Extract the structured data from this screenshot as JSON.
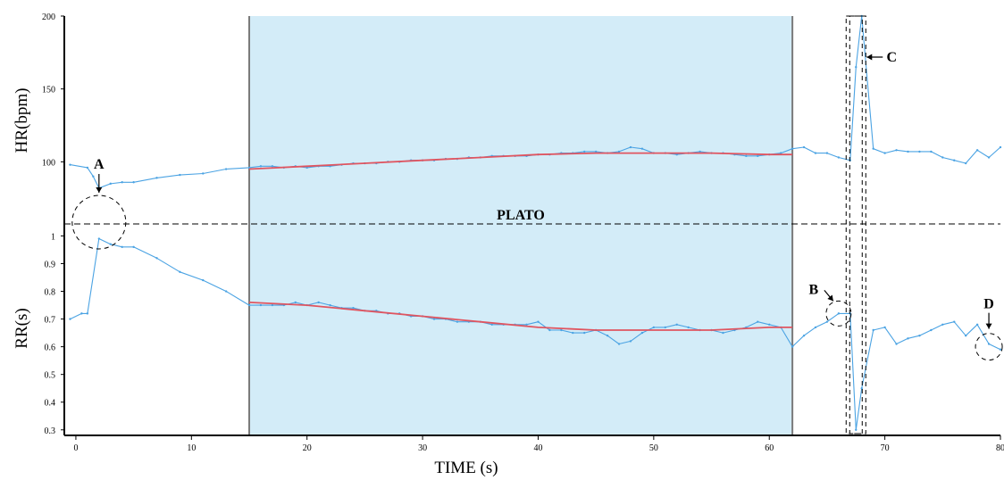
{
  "chart_data": {
    "type": "line",
    "xlabel": "TIME (s)",
    "x_ticks": [
      0,
      10,
      20,
      30,
      40,
      50,
      60,
      70,
      80
    ],
    "xlim": [
      -1,
      80
    ],
    "plateau_region": [
      15,
      62
    ],
    "threshold_label": "PLATO",
    "panels": [
      {
        "ylabel": "HR(bpm)",
        "y_ticks": [
          100,
          150,
          200
        ],
        "ylim": [
          58,
          200
        ],
        "series": [
          {
            "color": "#4ba3e3",
            "x": [
              -0.5,
              1,
              1.5,
              2,
              3,
              4,
              5,
              7,
              9,
              11,
              13,
              15,
              16,
              17,
              18,
              19,
              20,
              21,
              22,
              23,
              24,
              25,
              26,
              27,
              28,
              29,
              30,
              31,
              32,
              33,
              34,
              35,
              36,
              37,
              38,
              39,
              40,
              41,
              42,
              43,
              44,
              45,
              46,
              47,
              48,
              49,
              50,
              51,
              52,
              53,
              54,
              55,
              56,
              57,
              58,
              59,
              60,
              61,
              62,
              63,
              64,
              65,
              66,
              67,
              67.5,
              68,
              69,
              70,
              71,
              72,
              73,
              74,
              75,
              76,
              77,
              78,
              79,
              80
            ],
            "y": [
              98,
              96,
              90,
              82,
              85,
              86,
              86,
              89,
              91,
              92,
              95,
              96,
              97,
              97,
              96,
              97,
              96,
              97,
              97,
              98,
              99,
              99,
              99,
              100,
              100,
              101,
              101,
              101,
              102,
              102,
              103,
              103,
              104,
              104,
              104,
              104,
              105,
              105,
              106,
              106,
              107,
              107,
              106,
              107,
              110,
              109,
              106,
              106,
              105,
              106,
              107,
              106,
              106,
              105,
              104,
              104,
              105,
              106,
              109,
              110,
              106,
              106,
              103,
              101,
              165,
              200,
              109,
              106,
              108,
              107,
              107,
              107,
              103,
              101,
              99,
              108,
              103,
              110
            ]
          },
          {
            "color": "#e05560",
            "x": [
              15,
              20,
              25,
              30,
              35,
              40,
              45,
              50,
              55,
              60,
              62
            ],
            "y": [
              95,
              97,
              99,
              101,
              103,
              105,
              106,
              106,
              106,
              105,
              105
            ]
          }
        ]
      },
      {
        "ylabel": "RR(s)",
        "y_ticks": [
          0.3,
          0.4,
          0.5,
          0.6,
          0.7,
          0.8,
          0.9,
          1
        ],
        "ylim": [
          0.28,
          1.04
        ],
        "series": [
          {
            "color": "#4ba3e3",
            "x": [
              -0.5,
              0.5,
              1,
              2,
              3,
              4,
              5,
              7,
              9,
              11,
              13,
              15,
              16,
              17,
              18,
              19,
              20,
              21,
              22,
              23,
              24,
              25,
              26,
              27,
              28,
              29,
              30,
              31,
              32,
              33,
              34,
              35,
              36,
              37,
              38,
              39,
              40,
              41,
              42,
              43,
              44,
              45,
              46,
              47,
              48,
              49,
              50,
              51,
              52,
              53,
              54,
              55,
              56,
              57,
              58,
              59,
              60,
              61,
              62,
              63,
              64,
              65,
              66,
              67,
              67.5,
              68,
              69,
              70,
              71,
              72,
              73,
              74,
              75,
              76,
              77,
              78,
              79,
              80
            ],
            "y": [
              0.7,
              0.72,
              0.72,
              0.99,
              0.97,
              0.96,
              0.96,
              0.92,
              0.87,
              0.84,
              0.8,
              0.75,
              0.75,
              0.75,
              0.75,
              0.76,
              0.75,
              0.76,
              0.75,
              0.74,
              0.74,
              0.73,
              0.73,
              0.72,
              0.72,
              0.71,
              0.71,
              0.7,
              0.7,
              0.69,
              0.69,
              0.69,
              0.68,
              0.68,
              0.68,
              0.68,
              0.69,
              0.66,
              0.66,
              0.65,
              0.65,
              0.66,
              0.64,
              0.61,
              0.62,
              0.65,
              0.67,
              0.67,
              0.68,
              0.67,
              0.66,
              0.66,
              0.65,
              0.66,
              0.67,
              0.69,
              0.68,
              0.67,
              0.6,
              0.64,
              0.67,
              0.69,
              0.72,
              0.72,
              0.3,
              0.45,
              0.66,
              0.67,
              0.61,
              0.63,
              0.64,
              0.66,
              0.68,
              0.69,
              0.64,
              0.68,
              0.61,
              0.59
            ]
          },
          {
            "color": "#e05560",
            "x": [
              15,
              20,
              25,
              30,
              35,
              40,
              45,
              50,
              55,
              60,
              62
            ],
            "y": [
              0.76,
              0.75,
              0.73,
              0.71,
              0.69,
              0.67,
              0.66,
              0.66,
              0.66,
              0.67,
              0.67
            ]
          }
        ]
      }
    ],
    "annotations": [
      {
        "label": "A",
        "x": 2
      },
      {
        "label": "B",
        "x": 66
      },
      {
        "label": "C",
        "x": 67.5
      },
      {
        "label": "D",
        "x": 79
      }
    ]
  }
}
